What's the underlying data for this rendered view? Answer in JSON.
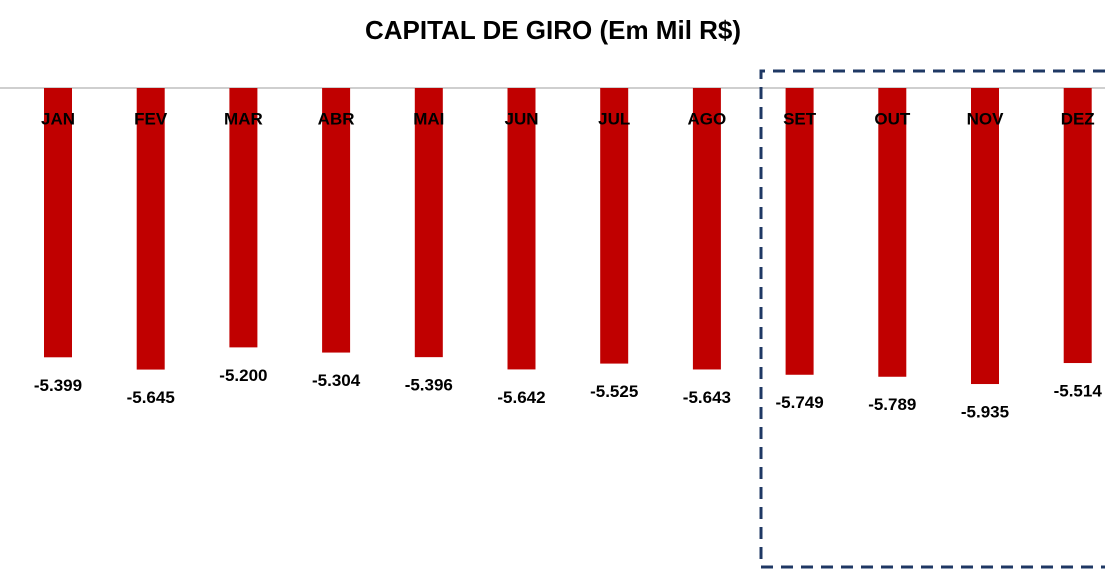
{
  "chart_data": {
    "type": "bar",
    "title": "CAPITAL DE GIRO (Em Mil R$)",
    "categories": [
      "JAN",
      "FEV",
      "MAR",
      "ABR",
      "MAI",
      "JUN",
      "JUL",
      "AGO",
      "SET",
      "OUT",
      "NOV",
      "DEZ"
    ],
    "values": [
      -5399,
      -5645,
      -5200,
      -5304,
      -5396,
      -5642,
      -5525,
      -5643,
      -5749,
      -5789,
      -5935,
      -5514
    ],
    "value_labels": [
      "-5.399",
      "-5.645",
      "-5.200",
      "-5.304",
      "-5.396",
      "-5.642",
      "-5.525",
      "-5.643",
      "-5.749",
      "-5.789",
      "-5.935",
      "-5.514"
    ],
    "color": "#c00000"
  }
}
